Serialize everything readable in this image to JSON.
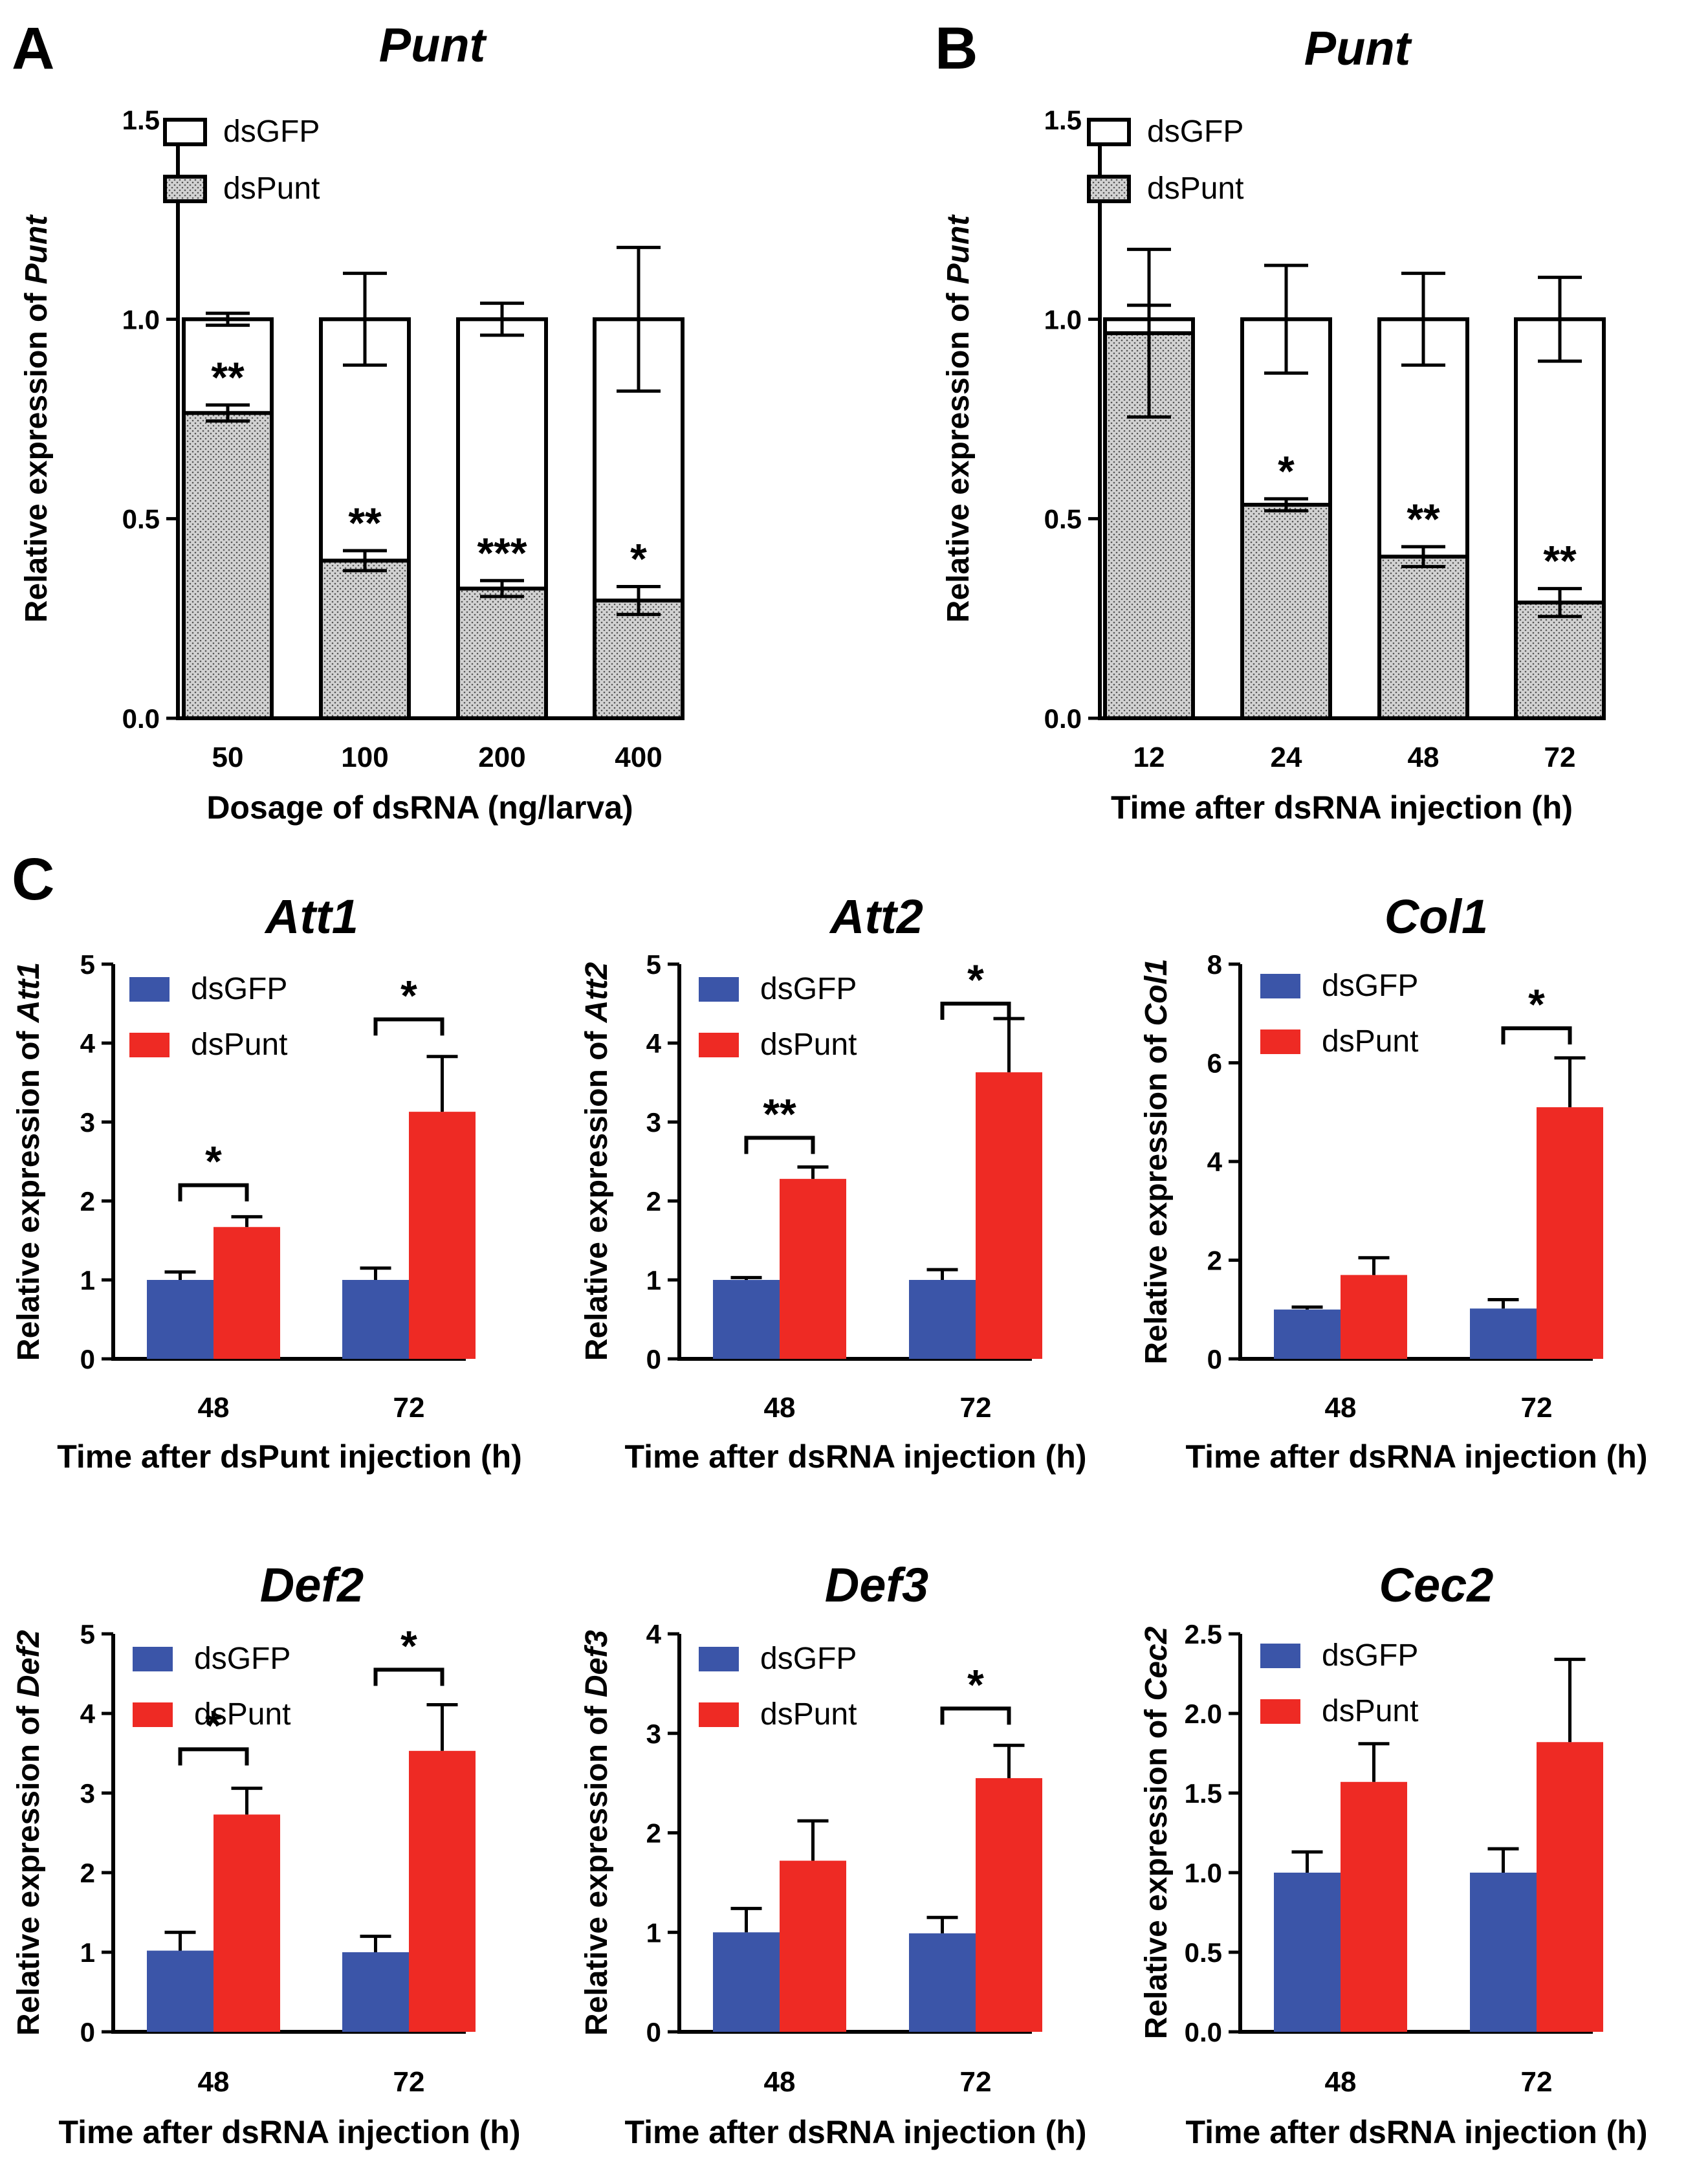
{
  "panels": [
    "A",
    "B",
    "C"
  ],
  "colors": {
    "dsGFP": "#3b55a8",
    "dsPunt": "#ee2a24",
    "stipple": "#c9c9c9"
  },
  "chart_data": [
    {
      "id": "A",
      "type": "bar",
      "mode": "overlay",
      "title": "Punt",
      "xlabel": "Dosage of dsRNA (ng/larva)",
      "ylabel_prefix": "Relative expression of ",
      "ylabel_gene": "Punt",
      "categories": [
        "50",
        "100",
        "200",
        "400"
      ],
      "ylim": [
        0,
        1.5
      ],
      "yticks": [
        0.0,
        0.5,
        1.0,
        1.5
      ],
      "series": [
        {
          "name": "dsGFP",
          "values": [
            1.0,
            1.0,
            1.0,
            1.0
          ],
          "errors": [
            0.015,
            0.115,
            0.04,
            0.18
          ]
        },
        {
          "name": "dsPunt",
          "values": [
            0.765,
            0.395,
            0.325,
            0.295
          ],
          "errors": [
            0.02,
            0.025,
            0.02,
            0.035
          ]
        }
      ],
      "significance": [
        "**",
        "**",
        "***",
        "*"
      ],
      "legend": [
        "dsGFP",
        "dsPunt"
      ]
    },
    {
      "id": "B",
      "type": "bar",
      "mode": "overlay",
      "title": "Punt",
      "xlabel": "Time after dsRNA injection (h)",
      "ylabel_prefix": "Relative expression of ",
      "ylabel_gene": "Punt",
      "categories": [
        "12",
        "24",
        "48",
        "72"
      ],
      "ylim": [
        0,
        1.5
      ],
      "yticks": [
        0.0,
        0.5,
        1.0,
        1.5
      ],
      "series": [
        {
          "name": "dsGFP",
          "values": [
            1.0,
            1.0,
            1.0,
            1.0
          ],
          "errors": [
            0.035,
            0.135,
            0.115,
            0.105
          ]
        },
        {
          "name": "dsPunt",
          "values": [
            0.965,
            0.535,
            0.405,
            0.29
          ],
          "errors": [
            0.21,
            0.015,
            0.025,
            0.035
          ]
        }
      ],
      "significance": [
        "",
        "*",
        "**",
        "**"
      ],
      "legend": [
        "dsGFP",
        "dsPunt"
      ]
    },
    {
      "id": "Att1",
      "type": "bar",
      "mode": "grouped",
      "title": "Att1",
      "xlabel": "Time after dsPunt injection (h)",
      "ylabel_prefix": "Relative expression of ",
      "ylabel_gene": "Att1",
      "categories": [
        "48",
        "72"
      ],
      "ylim": [
        0,
        5
      ],
      "yticks": [
        0,
        1,
        2,
        3,
        4,
        5
      ],
      "series": [
        {
          "name": "dsGFP",
          "values": [
            1.0,
            1.0
          ],
          "errors": [
            0.1,
            0.15
          ]
        },
        {
          "name": "dsPunt",
          "values": [
            1.67,
            3.13
          ],
          "errors": [
            0.13,
            0.7
          ]
        }
      ],
      "brackets": [
        {
          "cat": 0,
          "label": "*",
          "y": 2.2
        },
        {
          "cat": 1,
          "label": "*",
          "y": 4.3
        }
      ],
      "legend": [
        "dsGFP",
        "dsPunt"
      ]
    },
    {
      "id": "Att2",
      "type": "bar",
      "mode": "grouped",
      "title": "Att2",
      "xlabel": "Time after dsRNA injection (h)",
      "ylabel_prefix": "Relative expression of ",
      "ylabel_gene": "Att2",
      "categories": [
        "48",
        "72"
      ],
      "ylim": [
        0,
        5
      ],
      "yticks": [
        0,
        1,
        2,
        3,
        4,
        5
      ],
      "series": [
        {
          "name": "dsGFP",
          "values": [
            1.0,
            1.0
          ],
          "errors": [
            0.03,
            0.13
          ]
        },
        {
          "name": "dsPunt",
          "values": [
            2.28,
            3.63
          ],
          "errors": [
            0.15,
            0.68
          ]
        }
      ],
      "brackets": [
        {
          "cat": 0,
          "label": "**",
          "y": 2.8
        },
        {
          "cat": 1,
          "label": "*",
          "y": 4.5
        }
      ],
      "legend": [
        "dsGFP",
        "dsPunt"
      ]
    },
    {
      "id": "Col1",
      "type": "bar",
      "mode": "grouped",
      "title": "Col1",
      "xlabel": "Time after dsRNA injection (h)",
      "ylabel_prefix": "Relative expression of ",
      "ylabel_gene": "Col1",
      "categories": [
        "48",
        "72"
      ],
      "ylim": [
        0,
        8
      ],
      "yticks": [
        0,
        2,
        4,
        6,
        8
      ],
      "series": [
        {
          "name": "dsGFP",
          "values": [
            1.0,
            1.02
          ],
          "errors": [
            0.05,
            0.18
          ]
        },
        {
          "name": "dsPunt",
          "values": [
            1.7,
            5.1
          ],
          "errors": [
            0.35,
            1.0
          ]
        }
      ],
      "brackets": [
        {
          "cat": 1,
          "label": "*",
          "y": 6.7
        }
      ],
      "legend": [
        "dsGFP",
        "dsPunt"
      ]
    },
    {
      "id": "Def2",
      "type": "bar",
      "mode": "grouped",
      "title": "Def2",
      "xlabel": "Time after dsRNA injection (h)",
      "ylabel_prefix": "Relative expression of ",
      "ylabel_gene": "Def2",
      "categories": [
        "48",
        "72"
      ],
      "ylim": [
        0,
        5
      ],
      "yticks": [
        0,
        1,
        2,
        3,
        4,
        5
      ],
      "series": [
        {
          "name": "dsGFP",
          "values": [
            1.02,
            1.0
          ],
          "errors": [
            0.23,
            0.2
          ]
        },
        {
          "name": "dsPunt",
          "values": [
            2.73,
            3.53
          ],
          "errors": [
            0.33,
            0.58
          ]
        }
      ],
      "brackets": [
        {
          "cat": 0,
          "label": "*",
          "y": 3.55
        },
        {
          "cat": 1,
          "label": "*",
          "y": 4.55
        }
      ],
      "legend": [
        "dsGFP",
        "dsPunt"
      ]
    },
    {
      "id": "Def3",
      "type": "bar",
      "mode": "grouped",
      "title": "Def3",
      "xlabel": "Time after dsRNA injection (h)",
      "ylabel_prefix": "Relative expression of ",
      "ylabel_gene": "Def3",
      "categories": [
        "48",
        "72"
      ],
      "ylim": [
        0,
        4
      ],
      "yticks": [
        0,
        1,
        2,
        3,
        4
      ],
      "series": [
        {
          "name": "dsGFP",
          "values": [
            1.0,
            0.99
          ],
          "errors": [
            0.24,
            0.16
          ]
        },
        {
          "name": "dsPunt",
          "values": [
            1.72,
            2.55
          ],
          "errors": [
            0.4,
            0.33
          ]
        }
      ],
      "brackets": [
        {
          "cat": 1,
          "label": "*",
          "y": 3.25
        }
      ],
      "legend": [
        "dsGFP",
        "dsPunt"
      ]
    },
    {
      "id": "Cec2",
      "type": "bar",
      "mode": "grouped",
      "title": "Cec2",
      "xlabel": "Time after dsRNA injection (h)",
      "ylabel_prefix": "Relative expression of ",
      "ylabel_gene": "Cec2",
      "categories": [
        "48",
        "72"
      ],
      "ylim": [
        0,
        2.5
      ],
      "yticks": [
        "0.0",
        "0.5",
        "1.0",
        "1.5",
        "2.0",
        "2.5"
      ],
      "series": [
        {
          "name": "dsGFP",
          "values": [
            1.0,
            1.0
          ],
          "errors": [
            0.13,
            0.15
          ]
        },
        {
          "name": "dsPunt",
          "values": [
            1.57,
            1.82
          ],
          "errors": [
            0.24,
            0.52
          ]
        }
      ],
      "brackets": [],
      "legend": [
        "dsGFP",
        "dsPunt"
      ]
    }
  ]
}
